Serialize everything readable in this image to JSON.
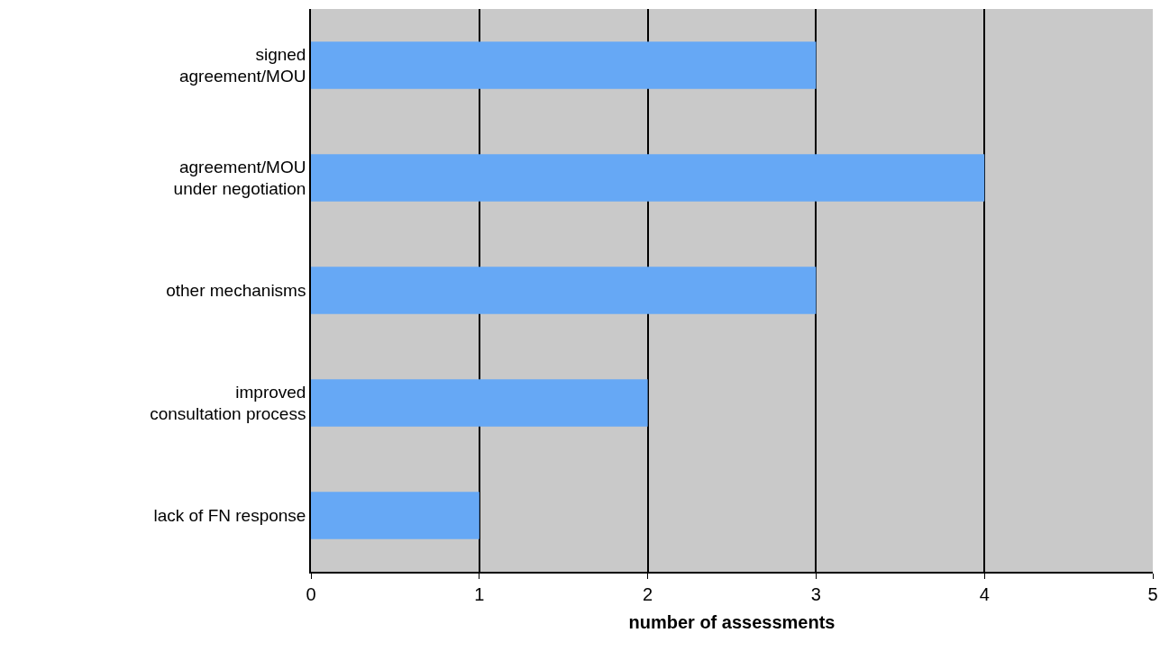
{
  "chart_data": {
    "type": "bar",
    "orientation": "horizontal",
    "categories": [
      "signed\nagreement/MOU",
      "agreement/MOU\nunder negotiation",
      "other mechanisms",
      "improved\nconsultation process",
      "lack of FN response"
    ],
    "values": [
      3,
      4,
      3,
      2,
      1
    ],
    "color": "#66a8f5",
    "xlim": [
      0,
      5
    ],
    "xticks": [
      0,
      1,
      2,
      3,
      4,
      5
    ],
    "xlabel": "number of assessments",
    "grid": "x"
  }
}
